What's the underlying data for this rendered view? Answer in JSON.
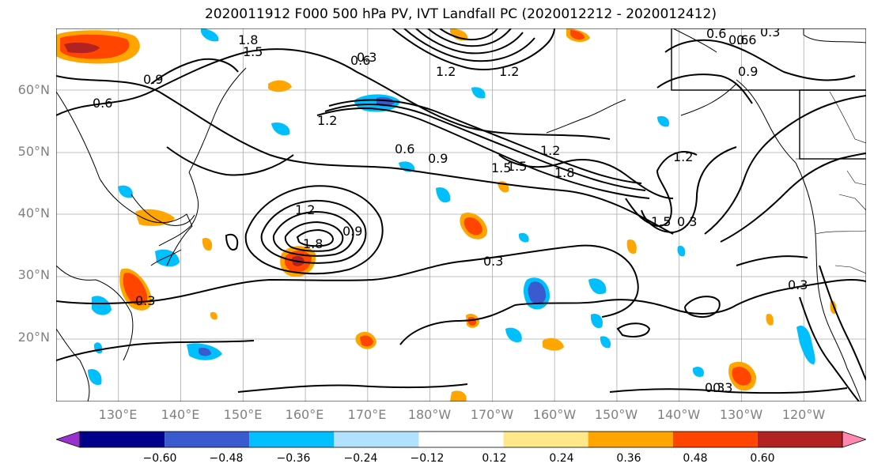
{
  "title": "2020011912 F000 500 hPa PV, IVT Landfall PC (2020012212 - 2020012412)",
  "lat_labels": [
    "60°N",
    "50°N",
    "40°N",
    "30°N",
    "20°N"
  ],
  "lon_labels": [
    "130°E",
    "140°E",
    "150°E",
    "160°E",
    "170°E",
    "180°W",
    "170°W",
    "160°W",
    "150°W",
    "140°W",
    "130°W",
    "120°W"
  ],
  "colorbar": {
    "ticks": [
      "−0.60",
      "−0.48",
      "−0.36",
      "−0.24",
      "−0.12",
      "0.12",
      "0.24",
      "0.36",
      "0.48",
      "0.60"
    ],
    "colors": [
      "#9932cc",
      "#00008b",
      "#3a5bd0",
      "#00bfff",
      "#b0e2ff",
      "#ffffff",
      "#ffe88a",
      "#ffa500",
      "#ff4500",
      "#b22222",
      "#ff88b0"
    ]
  },
  "contour_labels": [
    "1.8",
    "1.5",
    "0.6",
    "0.9",
    "0.6",
    "1.2",
    "0.6",
    "0.9",
    "1.5",
    "1.8",
    "1.2",
    "0.3",
    "1.2",
    "1.8",
    "0.9",
    "0.3",
    "0.3",
    "0.6",
    "0.3",
    "0.3",
    "0.3",
    "0.6",
    "0.3",
    "0.9",
    "1.2",
    "1.5",
    "0.6",
    "1.2",
    "1.2",
    "1.5",
    "0.3"
  ],
  "map_extent": {
    "lon_min": 120,
    "lon_max": 250,
    "lat_min": 10,
    "lat_max": 70
  }
}
